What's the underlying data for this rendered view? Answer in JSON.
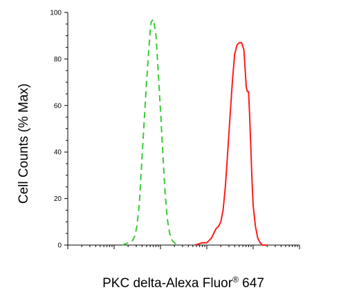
{
  "chart_data": {
    "type": "line",
    "xlabel": "PKC delta-Alexa Fluor",
    "xlabel_mark": "®",
    "xlabel_suffix": " 647",
    "ylabel": "Cell Counts (% Max)",
    "ylim": [
      0,
      100
    ],
    "yticks": [
      0,
      20,
      40,
      60,
      80,
      100
    ],
    "xscale": "log",
    "xlim": [
      1,
      100000
    ],
    "grid": false,
    "legend": "none",
    "series": [
      {
        "color": "#33cc33",
        "style": "dashed",
        "x": [
          15,
          20,
          25,
          28,
          31,
          35,
          38,
          42,
          45,
          50,
          56,
          60,
          63,
          71,
          80,
          89,
          100,
          112,
          125,
          141,
          158,
          178,
          200,
          224
        ],
        "y": [
          0,
          1,
          2,
          4,
          8,
          18,
          30,
          45,
          55,
          70,
          84,
          92,
          96,
          97,
          90,
          75,
          58,
          40,
          23,
          11,
          5,
          2,
          1,
          0
        ]
      },
      {
        "color": "#ff1a1a",
        "style": "solid",
        "x": [
          560,
          800,
          1000,
          1260,
          1410,
          1580,
          1780,
          2000,
          2240,
          2510,
          2820,
          3160,
          3550,
          3980,
          4470,
          5010,
          5620,
          6310,
          6680,
          7080,
          7500,
          7940,
          8410,
          8910,
          9440,
          10000,
          11200,
          12600,
          14100,
          15800,
          17800,
          20000
        ],
        "y": [
          0,
          1,
          1,
          3,
          5,
          7,
          8,
          10,
          15,
          25,
          40,
          55,
          70,
          82,
          86,
          87,
          87,
          84,
          76,
          68,
          66,
          66,
          55,
          42,
          28,
          17,
          8,
          3,
          1,
          0,
          0,
          0
        ]
      }
    ]
  }
}
